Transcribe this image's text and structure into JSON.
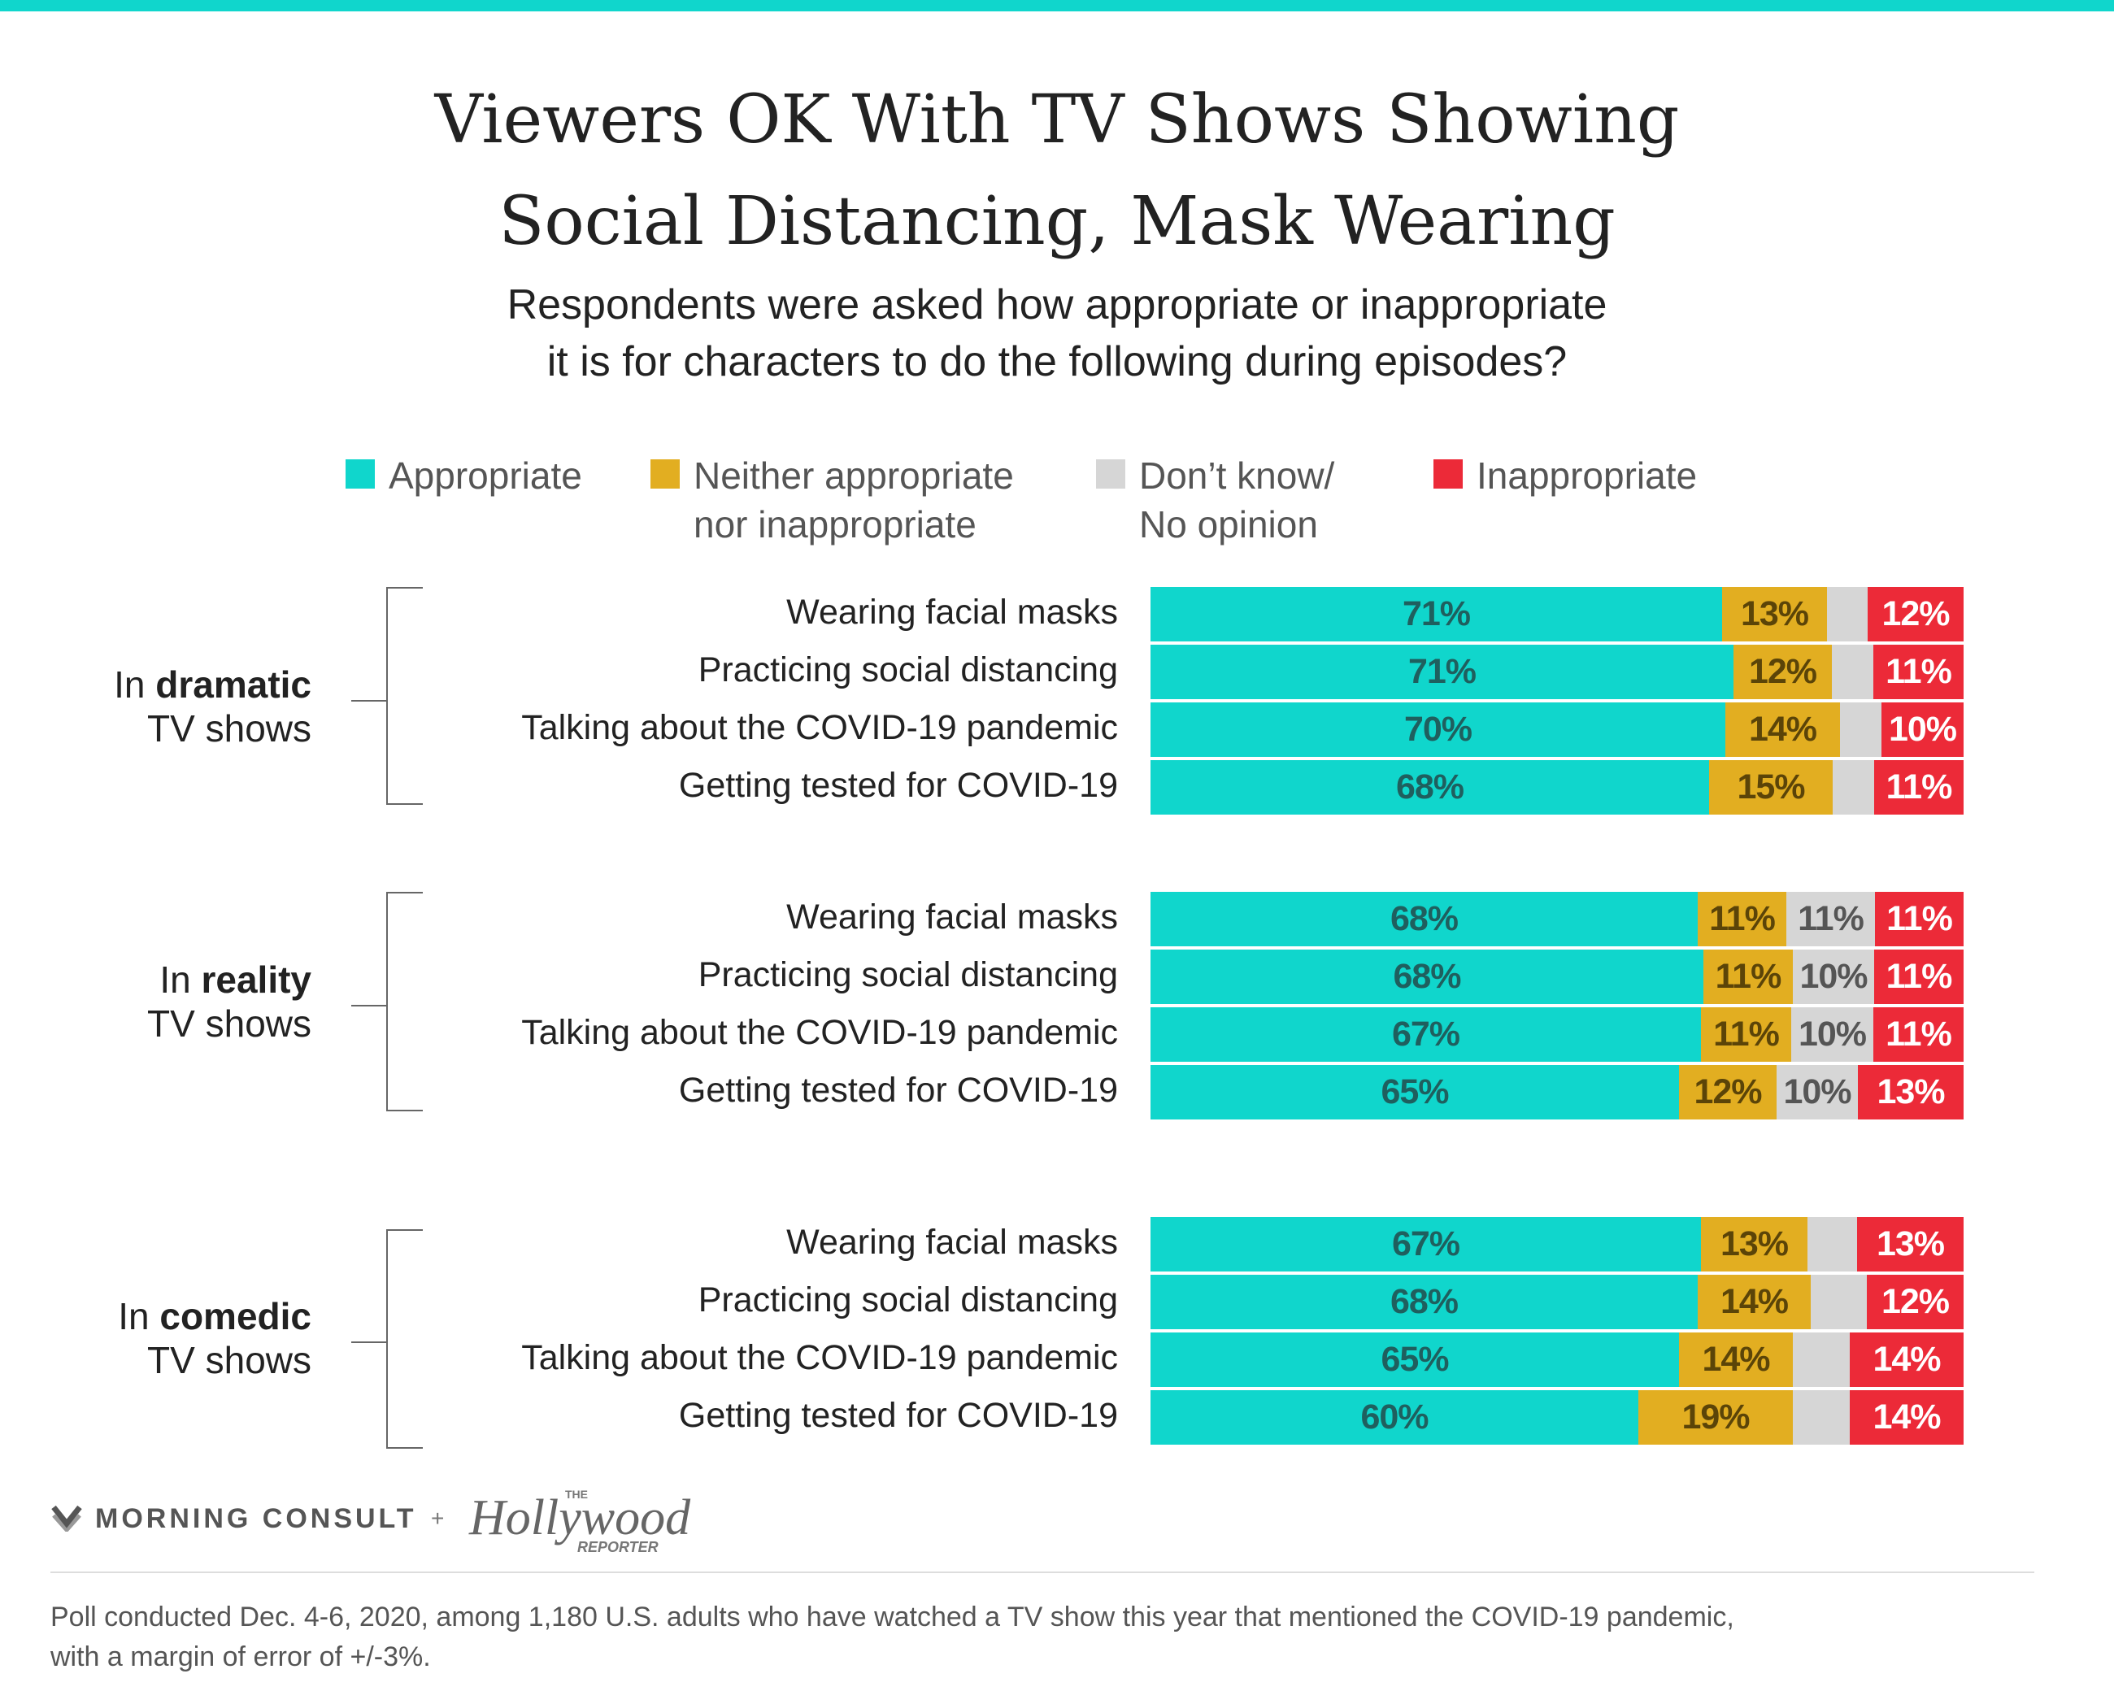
{
  "colors": {
    "accent": "#10d6cc",
    "appropriate": "#10d6cc",
    "neither": "#e2ae21",
    "dont_know": "#d6d6d6",
    "inappropriate": "#ec2a38",
    "appropriate_text": "#1f5f5e",
    "neither_text": "#5b4408",
    "dont_know_text": "#555555",
    "inappropriate_text": "#ffffff"
  },
  "title_lines": [
    "Viewers OK With TV Shows Showing",
    "Social Distancing, Mask Wearing"
  ],
  "subtitle_lines": [
    "Respondents were asked how appropriate or inappropriate",
    "it is for characters to do the following during episodes?"
  ],
  "legend": [
    {
      "key": "appropriate",
      "lines": [
        "Appropriate"
      ]
    },
    {
      "key": "neither",
      "lines": [
        "Neither appropriate",
        "nor inappropriate"
      ]
    },
    {
      "key": "dont_know",
      "lines": [
        "Don’t know/",
        "No opinion"
      ]
    },
    {
      "key": "inappropriate",
      "lines": [
        "Inappropriate"
      ]
    }
  ],
  "groups": [
    {
      "prefix": "In",
      "emphasis": "dramatic",
      "suffix": "TV shows"
    },
    {
      "prefix": "In",
      "emphasis": "reality",
      "suffix": "TV shows"
    },
    {
      "prefix": "In",
      "emphasis": "comedic",
      "suffix": "TV shows"
    }
  ],
  "chart_data": {
    "type": "bar",
    "orientation": "horizontal",
    "stacked": true,
    "unit": "%",
    "series_order": [
      "Appropriate",
      "Neither appropriate nor inappropriate",
      "Don’t know/ No opinion",
      "Inappropriate"
    ],
    "rows": [
      {
        "group": "In dramatic TV shows",
        "label": "Wearing facial masks",
        "values": [
          71,
          13,
          5,
          12
        ],
        "labels": [
          "71%",
          "13%",
          "",
          "12%"
        ]
      },
      {
        "group": "In dramatic TV shows",
        "label": "Practicing social distancing",
        "values": [
          71,
          12,
          5,
          11
        ],
        "labels": [
          "71%",
          "12%",
          "",
          "11%"
        ]
      },
      {
        "group": "In dramatic TV shows",
        "label": "Talking about the COVID-19 pandemic",
        "values": [
          70,
          14,
          5,
          10
        ],
        "labels": [
          "70%",
          "14%",
          "",
          "10%"
        ]
      },
      {
        "group": "In dramatic TV shows",
        "label": "Getting tested for COVID-19",
        "values": [
          68,
          15,
          5,
          11
        ],
        "labels": [
          "68%",
          "15%",
          "",
          "11%"
        ]
      },
      {
        "group": "In reality TV shows",
        "label": "Wearing facial masks",
        "values": [
          68,
          11,
          11,
          11
        ],
        "labels": [
          "68%",
          "11%",
          "11%",
          "11%"
        ]
      },
      {
        "group": "In reality TV shows",
        "label": "Practicing social distancing",
        "values": [
          68,
          11,
          10,
          11
        ],
        "labels": [
          "68%",
          "11%",
          "10%",
          "11%"
        ]
      },
      {
        "group": "In reality TV shows",
        "label": "Talking about the COVID-19 pandemic",
        "values": [
          67,
          11,
          10,
          11
        ],
        "labels": [
          "67%",
          "11%",
          "10%",
          "11%"
        ]
      },
      {
        "group": "In reality TV shows",
        "label": "Getting tested for COVID-19",
        "values": [
          65,
          12,
          10,
          13
        ],
        "labels": [
          "65%",
          "12%",
          "10%",
          "13%"
        ]
      },
      {
        "group": "In comedic TV shows",
        "label": "Wearing facial masks",
        "values": [
          67,
          13,
          6,
          13
        ],
        "labels": [
          "67%",
          "13%",
          "",
          "13%"
        ]
      },
      {
        "group": "In comedic TV shows",
        "label": "Practicing social distancing",
        "values": [
          68,
          14,
          7,
          12
        ],
        "labels": [
          "68%",
          "14%",
          "",
          "12%"
        ]
      },
      {
        "group": "In comedic TV shows",
        "label": "Talking about the COVID-19 pandemic",
        "values": [
          65,
          14,
          7,
          14
        ],
        "labels": [
          "65%",
          "14%",
          "",
          "14%"
        ]
      },
      {
        "group": "In comedic TV shows",
        "label": "Getting tested for COVID-19",
        "values": [
          60,
          19,
          7,
          14
        ],
        "labels": [
          "60%",
          "19%",
          "",
          "14%"
        ]
      }
    ]
  },
  "footer": {
    "morning_consult": "MORNING CONSULT",
    "plus": "+",
    "thr_small": "THE",
    "thr_main": "Hollywood",
    "thr_sub": "REPORTER",
    "note_lines": [
      "Poll conducted Dec. 4-6, 2020, among 1,180 U.S. adults who have watched a TV show this year that mentioned the COVID-19 pandemic,",
      "with a margin of error of +/-3%."
    ]
  }
}
